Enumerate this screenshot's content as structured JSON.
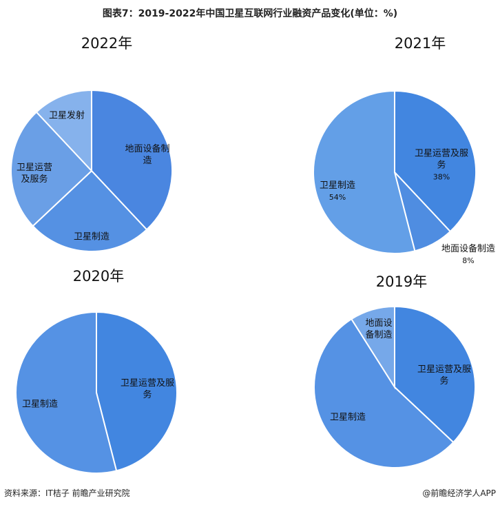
{
  "title": "图表7：2019-2022年中国卫星互联网行业融资产品变化(单位：%)",
  "source": "资料来源：IT桔子 前瞻产业研究院",
  "credit": "@前瞻经济学人APP",
  "chart_data": [
    {
      "type": "pie",
      "title": "2022年",
      "categories": [
        "地面设备制造",
        "卫星制造",
        "卫星运营及服务",
        "卫星发射"
      ],
      "values": [
        38,
        25,
        25,
        12
      ],
      "colors": [
        "#4a86e0",
        "#5591e3",
        "#6a9fe6",
        "#86b2ec"
      ]
    },
    {
      "type": "pie",
      "title": "2021年",
      "categories": [
        "卫星运营及服务",
        "地面设备制造",
        "卫星制造"
      ],
      "values": [
        38,
        8,
        54
      ],
      "value_labels": [
        "38%",
        "8%",
        "54%"
      ],
      "colors": [
        "#4286e0",
        "#4f8de1",
        "#639fe7"
      ]
    },
    {
      "type": "pie",
      "title": "2020年",
      "categories": [
        "卫星运营及服务",
        "卫星制造"
      ],
      "values": [
        46,
        54
      ],
      "colors": [
        "#4286e0",
        "#5592e4"
      ]
    },
    {
      "type": "pie",
      "title": "2019年",
      "categories": [
        "卫星运营及服务",
        "卫星制造",
        "地面设备制造"
      ],
      "values": [
        37,
        54,
        9
      ],
      "colors": [
        "#4286e0",
        "#5592e4",
        "#76a8e9"
      ]
    }
  ]
}
